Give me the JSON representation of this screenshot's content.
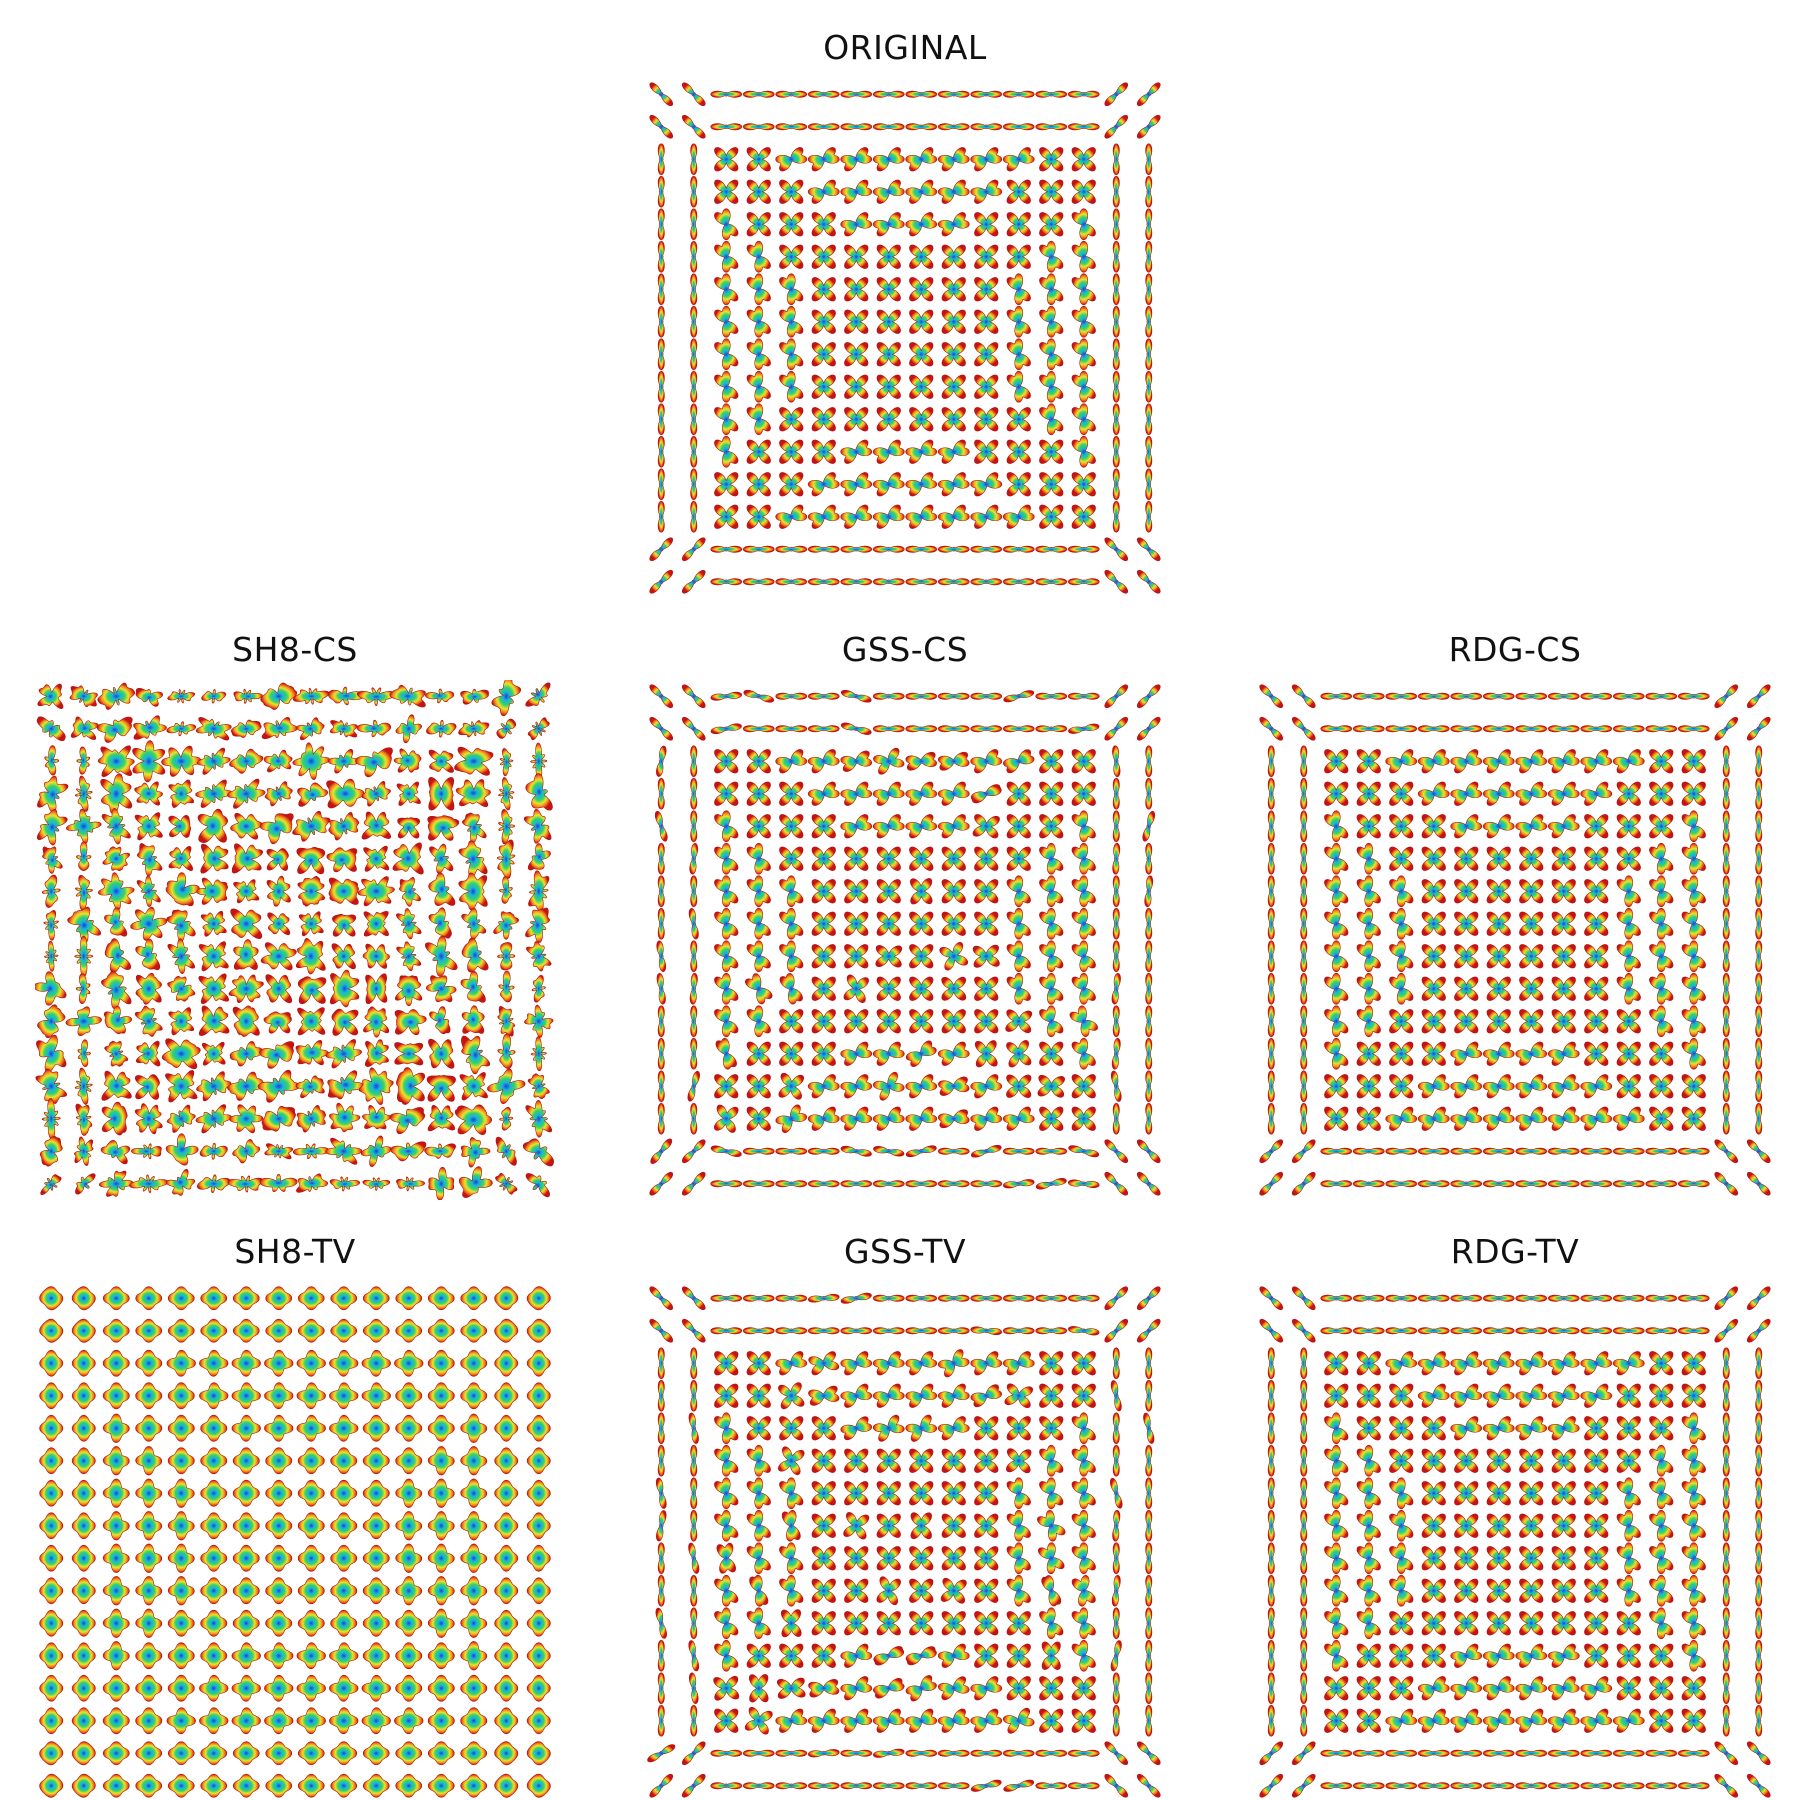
{
  "figure": {
    "description_type": "grid of ODF glyph visualizations (16x16) comparing reconstruction methods",
    "grid_size": 16,
    "colormap": [
      "#1b3fd6",
      "#18b4d8",
      "#36d06a",
      "#e9e32b",
      "#f28a1e",
      "#c41414"
    ],
    "panels": [
      {
        "id": "original",
        "title": "ORIGINAL",
        "style": "clean"
      },
      {
        "id": "sh8cs",
        "title": "SH8-CS",
        "style": "noisy"
      },
      {
        "id": "gsscs",
        "title": "GSS-CS",
        "style": "mild"
      },
      {
        "id": "rdgcs",
        "title": "RDG-CS",
        "style": "clean"
      },
      {
        "id": "sh8tv",
        "title": "SH8-TV",
        "style": "blob"
      },
      {
        "id": "gsstv",
        "title": "GSS-TV",
        "style": "mild"
      },
      {
        "id": "rdgtv",
        "title": "RDG-TV",
        "style": "clean"
      }
    ]
  }
}
